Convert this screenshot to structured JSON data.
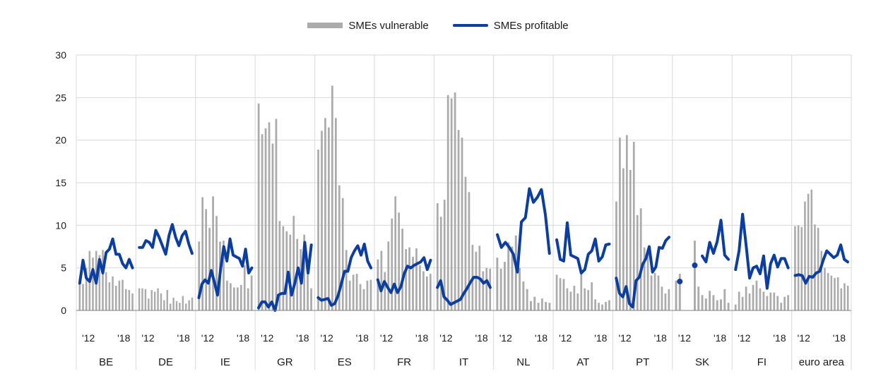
{
  "colors": {
    "bars": "#ababab",
    "line": "#0b3ea0",
    "grid": "#d9d9d9",
    "axis": "#7f7f7f"
  },
  "legend": {
    "placement": "top-center",
    "vulnerable": "SMEs vulnerable",
    "profitable": "SMEs profitable"
  },
  "chart_data": {
    "type": "bar+line",
    "ylim": [
      0,
      30
    ],
    "yticks": [
      0,
      5,
      10,
      15,
      20,
      25,
      30
    ],
    "grid": true,
    "year_tick_labels": [
      "'12",
      "'18"
    ],
    "groups": [
      {
        "name": "BE",
        "vulnerable": [
          3.7,
          3.1,
          5.0,
          7.0,
          6.2,
          7.0,
          6.5,
          7.1,
          4.5,
          3.3,
          4.0,
          2.9,
          3.5,
          3.6,
          2.5,
          2.4,
          2.0
        ],
        "profitable": [
          3.2,
          5.9,
          3.8,
          3.4,
          4.8,
          3.2,
          6.0,
          4.4,
          6.8,
          7.2,
          8.4,
          6.6,
          6.6,
          5.5,
          5.0,
          6.0,
          5.0
        ]
      },
      {
        "name": "DE",
        "vulnerable": [
          2.6,
          2.6,
          2.5,
          1.4,
          2.4,
          2.2,
          2.6,
          2.0,
          1.2,
          2.4,
          0.8,
          1.5,
          1.1,
          0.9,
          1.7,
          0.8,
          1.2,
          1.5
        ],
        "profitable": [
          7.4,
          7.4,
          8.2,
          8.0,
          7.4,
          9.4,
          8.6,
          7.6,
          6.6,
          8.8,
          10.1,
          8.6,
          7.6,
          8.8,
          9.3,
          7.8,
          6.7
        ]
      },
      {
        "name": "IE",
        "vulnerable": [
          8.1,
          13.3,
          11.9,
          9.7,
          13.4,
          11.1,
          8.1,
          8.2,
          3.5,
          3.2,
          2.7,
          2.7,
          3.0,
          5.3,
          2.6,
          4.1
        ],
        "profitable": [
          1.5,
          3.1,
          3.6,
          3.2,
          4.7,
          3.3,
          1.8,
          4.9,
          7.5,
          5.8,
          8.4,
          6.5,
          6.3,
          6.1,
          5.2,
          7.2,
          4.4,
          5.0
        ]
      },
      {
        "name": "GR",
        "vulnerable": [
          24.3,
          20.7,
          21.4,
          22.1,
          19.6,
          22.5,
          10.5,
          9.9,
          9.3,
          8.9,
          11.1,
          8.4,
          7.2,
          8.9,
          5.3,
          2.6
        ],
        "profitable": [
          0.3,
          1.0,
          1.0,
          0.4,
          1.0,
          0.0,
          1.8,
          2.0,
          2.0,
          4.5,
          1.8,
          3.2,
          5.0,
          3.2,
          8.0,
          4.4,
          7.7
        ]
      },
      {
        "name": "ES",
        "vulnerable": [
          18.9,
          21.1,
          22.6,
          21.5,
          26.4,
          22.6,
          14.7,
          13.2,
          7.1,
          3.5,
          4.2,
          4.3,
          3.1,
          2.5,
          3.5,
          3.6
        ],
        "profitable": [
          1.5,
          1.2,
          1.3,
          1.4,
          0.6,
          0.8,
          1.7,
          3.1,
          4.6,
          4.6,
          6.2,
          7.0,
          7.6,
          6.5,
          7.8,
          5.8,
          5.0
        ]
      },
      {
        "name": "FR",
        "vulnerable": [
          6.0,
          7.0,
          4.5,
          8.1,
          10.8,
          13.4,
          11.5,
          9.6,
          7.2,
          7.4,
          6.3,
          7.3,
          5.3,
          4.6,
          4.0,
          4.3
        ],
        "profitable": [
          3.6,
          2.3,
          3.4,
          2.7,
          2.1,
          3.1,
          2.1,
          2.8,
          4.3,
          5.2,
          5.0,
          5.3,
          5.5,
          5.7,
          6.2,
          4.8,
          5.9
        ]
      },
      {
        "name": "IT",
        "vulnerable": [
          12.6,
          11.0,
          13.0,
          25.3,
          24.9,
          25.6,
          21.2,
          20.3,
          15.7,
          13.9,
          7.7,
          6.9,
          7.6,
          4.6,
          5.0,
          4.9
        ],
        "profitable": [
          2.7,
          3.5,
          1.6,
          1.2,
          0.7,
          0.9,
          1.1,
          1.3,
          2.0,
          2.6,
          3.3,
          3.9,
          3.9,
          3.7,
          3.2,
          3.5,
          2.7
        ]
      },
      {
        "name": "NL",
        "vulnerable": [
          6.2,
          4.9,
          5.7,
          8.0,
          7.5,
          8.8,
          5.0,
          3.4,
          2.5,
          1.1,
          1.6,
          0.9,
          1.4,
          1.0,
          0.9
        ],
        "profitable": [
          8.9,
          7.4,
          8.0,
          7.4,
          6.6,
          4.5,
          10.4,
          10.9,
          14.3,
          12.7,
          13.3,
          14.2,
          11.2,
          6.7
        ]
      },
      {
        "name": "AT",
        "vulnerable": [
          4.2,
          3.8,
          3.7,
          2.6,
          2.2,
          2.9,
          2.0,
          4.3,
          2.6,
          2.4,
          3.3,
          1.3,
          0.9,
          0.7,
          1.0,
          1.2
        ],
        "profitable": [
          8.3,
          6.0,
          5.8,
          10.3,
          6.5,
          6.3,
          6.1,
          4.4,
          4.8,
          6.6,
          7.0,
          8.4,
          5.8,
          6.3,
          7.7,
          7.8
        ]
      },
      {
        "name": "PT",
        "vulnerable": [
          12.8,
          20.3,
          16.7,
          20.6,
          16.5,
          19.8,
          11.2,
          12.0,
          7.4,
          6.6,
          4.1,
          4.4,
          4.1,
          2.8,
          2.0,
          2.5
        ],
        "profitable": [
          3.8,
          2.0,
          1.6,
          2.8,
          0.8,
          0.4,
          3.5,
          3.9,
          5.4,
          6.1,
          7.5,
          4.5,
          5.1,
          7.4,
          7.3,
          8.2,
          8.6
        ]
      },
      {
        "name": "SK",
        "vulnerable": [
          3.5,
          4.3,
          0,
          0,
          0,
          8.2,
          2.8,
          1.8,
          1.4,
          2.3,
          1.8,
          1.2,
          1.3,
          2.5,
          0.9
        ],
        "profitable": [
          null,
          3.4,
          null,
          null,
          null,
          5.3,
          null,
          6.4,
          5.7,
          8.0,
          6.7,
          8.1,
          10.6,
          6.5,
          6.0
        ]
      },
      {
        "name": "FI",
        "vulnerable": [
          0.7,
          2.2,
          1.6,
          2.8,
          2.0,
          3.0,
          3.5,
          2.6,
          2.2,
          1.7,
          2.1,
          2.1,
          1.7,
          0.9,
          1.6,
          1.8
        ],
        "profitable": [
          4.8,
          7.0,
          11.3,
          7.7,
          3.8,
          5.0,
          5.2,
          4.3,
          6.4,
          2.6,
          5.5,
          6.5,
          5.1,
          6.1,
          6.1,
          5.0
        ]
      },
      {
        "name": "euro area",
        "vulnerable": [
          9.9,
          10.0,
          9.8,
          12.8,
          13.7,
          14.2,
          10.1,
          9.7,
          7.0,
          5.0,
          4.4,
          4.1,
          3.8,
          3.9,
          2.6,
          3.2,
          2.9
        ],
        "profitable": [
          4.1,
          4.2,
          4.1,
          3.2,
          4.0,
          3.9,
          4.4,
          4.6,
          5.9,
          7.0,
          6.6,
          6.2,
          6.5,
          7.7,
          6.0,
          5.7
        ]
      }
    ]
  }
}
